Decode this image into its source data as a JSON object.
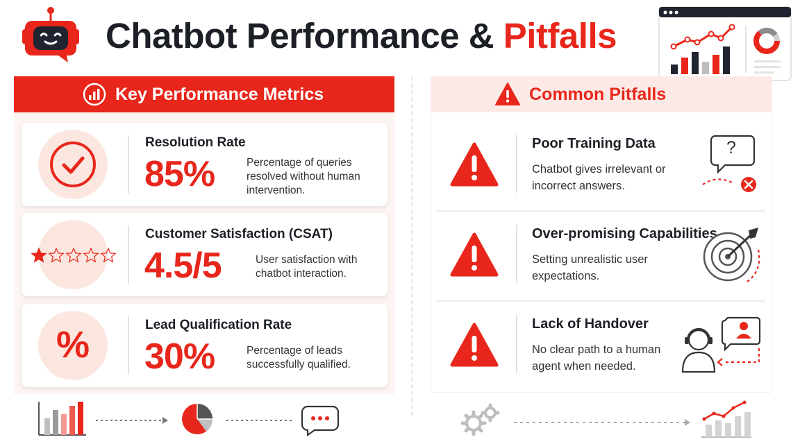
{
  "header": {
    "title_main": "Chatbot Performance & ",
    "title_accent": "Pitfalls"
  },
  "colors": {
    "accent": "#e8261b",
    "accent_soft": "#fbe7df",
    "panel_left_bg": "#fdf5f1",
    "panel_right_header_bg": "#fdeae6",
    "text_dark": "#1c1f26"
  },
  "metrics_panel": {
    "title": "Key Performance Metrics",
    "icon": "bar-chart-circle-icon",
    "items": [
      {
        "name": "Resolution Rate",
        "value": "85%",
        "description": "Percentage of queries resolved without human intervention.",
        "icon": "checkmark-circle-icon"
      },
      {
        "name": "Customer Satisfaction (CSAT)",
        "value": "4.5/5",
        "description": "User satisfaction with chatbot interaction.",
        "icon": "star-rating-icon",
        "rating_filled": 1,
        "rating_total": 5
      },
      {
        "name": "Lead Qualification Rate",
        "value": "30%",
        "description": "Percentage of leads successfully qualified.",
        "icon": "percent-icon",
        "icon_glyph": "%"
      }
    ]
  },
  "pitfalls_panel": {
    "title": "Common Pitfalls",
    "icon": "warning-triangle-icon",
    "items": [
      {
        "name": "Poor Training Data",
        "description": "Chatbot gives irrelevant or incorrect answers.",
        "icon": "question-bubble-error-icon",
        "glyph": "?"
      },
      {
        "name": "Over-promising Capabilities",
        "description": "Setting unrealistic user expectations.",
        "icon": "target-arrow-icon"
      },
      {
        "name": "Lack of Handover",
        "description": "No clear path to a human agent when needed.",
        "icon": "human-agent-handover-icon"
      }
    ]
  },
  "decor_icons": [
    "robot-icon",
    "dashboard-illustration-icon",
    "bar-chart-icon",
    "pie-chart-icon",
    "chat-bubble-icon",
    "gears-icon",
    "trend-chart-icon"
  ]
}
